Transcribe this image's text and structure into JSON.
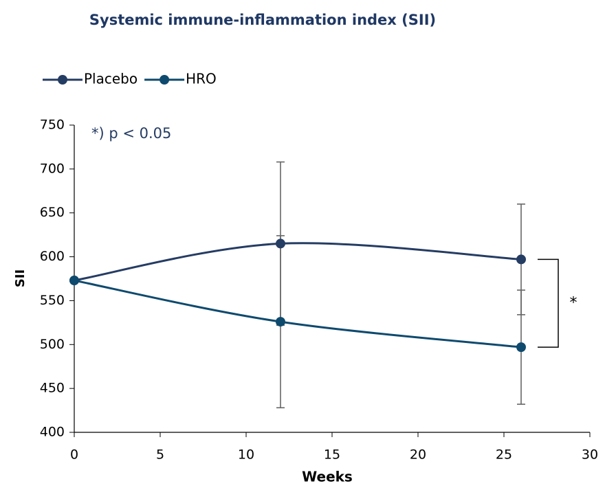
{
  "chart_data": {
    "type": "line",
    "title": "Systemic immune-inflammation index (SII)",
    "x_label": "Weeks",
    "y_label": "SII",
    "annotations": [
      "*) p < 0.05",
      "*"
    ],
    "x": [
      0,
      12,
      26
    ],
    "series": [
      {
        "name": "Placebo",
        "color": "#253c63",
        "values": [
          573,
          615,
          597
        ],
        "errors": [
          null,
          93,
          63
        ]
      },
      {
        "name": "HRO",
        "color": "#0e4a6e",
        "values": [
          573,
          526,
          497
        ],
        "errors": [
          null,
          98,
          65
        ]
      }
    ],
    "xlim": [
      0,
      30
    ],
    "xticks": [
      0,
      5,
      10,
      15,
      20,
      25,
      30
    ],
    "ylim": [
      400,
      750
    ],
    "yticks": [
      400,
      450,
      500,
      550,
      600,
      650,
      700,
      750
    ],
    "grid": false,
    "smooth": true,
    "legend": "top-left"
  }
}
